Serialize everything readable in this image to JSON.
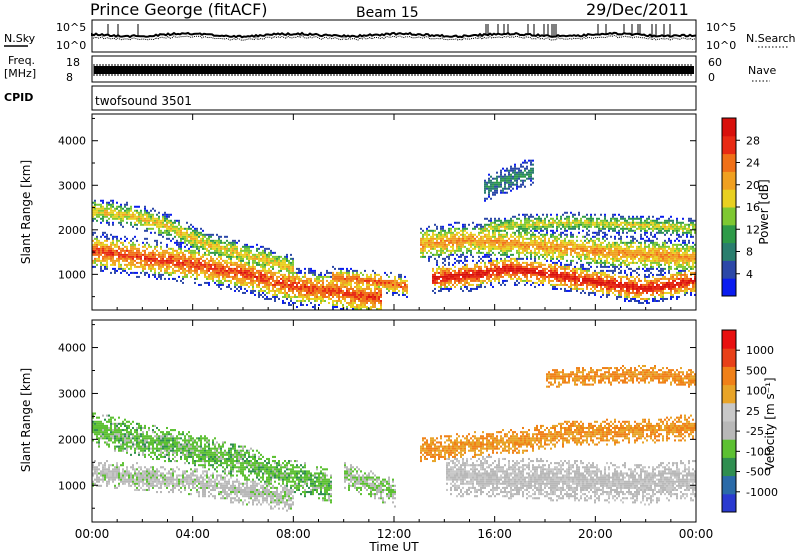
{
  "header": {
    "station": "Prince George (fitACF)",
    "beam": "Beam 15",
    "date": "29/Dec/2011"
  },
  "strips": {
    "nsky_label": "N.Sky",
    "nsearch_label": "N.Search",
    "noise_ticks_left": [
      "10^5",
      "10^0"
    ],
    "noise_ticks_right": [
      "10^5",
      "10^0"
    ],
    "freq_label_1": "Freq.",
    "freq_label_2": "[MHz]",
    "freq_ticks": [
      "18",
      "8"
    ],
    "nave_label": "Nave",
    "nave_ticks": [
      "60",
      "0"
    ],
    "cpid_label": "CPID",
    "cpid_text": "twofsound 3501"
  },
  "colors": {
    "power": [
      "#0a1cf0",
      "#2c48a8",
      "#2a7e6e",
      "#2e9a48",
      "#7ec832",
      "#e8d020",
      "#f0a020",
      "#f07018",
      "#e82a14",
      "#d8100c"
    ],
    "velocity": [
      "#2a3ad0",
      "#2a6aa8",
      "#2f8e50",
      "#5cc032",
      "#b8b8b8",
      "#c8c8c8",
      "#e8a428",
      "#f08018",
      "#e84018",
      "#e81010"
    ]
  },
  "chart_data": [
    {
      "type": "heatmap",
      "name": "power",
      "ylabel": "Slant Range [km]",
      "x_ticks": [
        "00:00",
        "04:00",
        "08:00",
        "12:00",
        "16:00",
        "20:00",
        "00:00"
      ],
      "y_ticks": [
        1000,
        2000,
        3000,
        4000
      ],
      "ylim": [
        200,
        4600
      ],
      "xlim_hours": [
        0,
        24
      ],
      "colorbar_label": "Power [dB]",
      "colorbar_ticks": [
        "28",
        "24",
        "20",
        "16",
        "12",
        "8",
        "4"
      ],
      "bands": [
        {
          "t": [
            0.0,
            2.0,
            4.0,
            6.0,
            8.0,
            9.5,
            10.5,
            11.5
          ],
          "r": [
            1500,
            1350,
            1200,
            1000,
            700,
            600,
            500,
            450
          ],
          "w": 450,
          "peak": 0.85
        },
        {
          "t": [
            0.0,
            1.5,
            3.0,
            4.5,
            6.5,
            8.0
          ],
          "r": [
            2400,
            2300,
            2050,
            1650,
            1350,
            1100
          ],
          "w": 300,
          "peak": 0.6
        },
        {
          "t": [
            9.5,
            10.5,
            11.5,
            12.5
          ],
          "r": [
            900,
            850,
            800,
            700
          ],
          "w": 250,
          "peak": 0.8
        },
        {
          "t": [
            13.0,
            15.0,
            17.0,
            19.0,
            21.0,
            22.5,
            24.0
          ],
          "r": [
            1650,
            1750,
            1650,
            1550,
            1450,
            1400,
            1350
          ],
          "w": 420,
          "peak": 0.7
        },
        {
          "t": [
            13.5,
            15.0,
            16.5,
            18.0,
            20.0,
            22.0,
            24.0
          ],
          "r": [
            900,
            950,
            1100,
            1000,
            800,
            650,
            850
          ],
          "w": 350,
          "peak": 0.95
        },
        {
          "t": [
            15.5,
            17.0,
            19.0,
            21.0,
            23.0,
            24.0
          ],
          "r": [
            2000,
            2100,
            2150,
            2100,
            2050,
            2000
          ],
          "w": 220,
          "peak": 0.55
        },
        {
          "t": [
            15.5,
            16.5,
            17.5
          ],
          "r": [
            2900,
            3100,
            3300
          ],
          "w": 300,
          "peak": 0.3
        }
      ]
    },
    {
      "type": "heatmap",
      "name": "velocity",
      "ylabel": "Slant Range [km]",
      "xlabel": "Time UT",
      "x_ticks": [
        "00:00",
        "04:00",
        "08:00",
        "12:00",
        "16:00",
        "20:00",
        "00:00"
      ],
      "y_ticks": [
        1000,
        2000,
        3000,
        4000
      ],
      "ylim": [
        200,
        4600
      ],
      "xlim_hours": [
        0,
        24
      ],
      "colorbar_label": "Velocity [m s⁻¹]",
      "colorbar_ticks": [
        "1000",
        "500",
        "100",
        "25",
        "-25",
        "-100",
        "-500",
        "-1000"
      ],
      "bands": [
        {
          "t": [
            0.0,
            2.0,
            4.0,
            6.0,
            8.0,
            9.5
          ],
          "r": [
            2200,
            1950,
            1750,
            1450,
            1150,
            950
          ],
          "w": 380,
          "peak": 0.35
        },
        {
          "t": [
            0.0,
            2.0,
            4.0,
            6.0,
            8.0
          ],
          "r": [
            1250,
            1150,
            1050,
            850,
            700
          ],
          "w": 300,
          "peak": 0.45
        },
        {
          "t": [
            13.0,
            15.0,
            17.0,
            19.0,
            21.0,
            23.0,
            24.0
          ],
          "r": [
            1750,
            1850,
            1950,
            2100,
            2150,
            2200,
            2250
          ],
          "w": 280,
          "peak": 0.7
        },
        {
          "t": [
            14.0,
            16.0,
            18.0,
            20.0,
            22.0,
            24.0
          ],
          "r": [
            1200,
            1150,
            1100,
            1050,
            1000,
            1100
          ],
          "w": 450,
          "peak": 0.48
        },
        {
          "t": [
            18.0,
            20.0,
            22.0,
            24.0
          ],
          "r": [
            3300,
            3350,
            3400,
            3300
          ],
          "w": 200,
          "peak": 0.72
        },
        {
          "t": [
            10.0,
            11.0,
            12.0
          ],
          "r": [
            1200,
            1000,
            800
          ],
          "w": 300,
          "peak": 0.4
        }
      ]
    }
  ]
}
